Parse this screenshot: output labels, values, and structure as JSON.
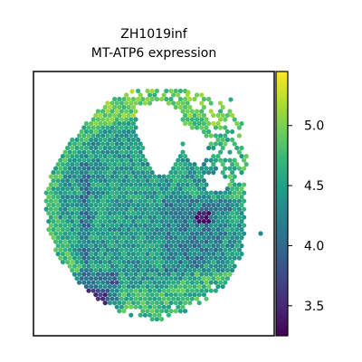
{
  "chart_data": {
    "type": "heatmap",
    "title": "ZH1019inf",
    "subtitle": "MT-ATP6 expression",
    "xlabel": "",
    "ylabel": "",
    "colorbar": {
      "colormap": "viridis",
      "range": [
        3.25,
        5.45
      ],
      "ticks": [
        3.5,
        4.0,
        4.5,
        5.0
      ],
      "tick_labels": [
        "3.5",
        "4.0",
        "4.5",
        "5.0"
      ]
    },
    "axes_ticks_visible": false,
    "grid": false,
    "spot_layout": "hexagonal",
    "value_summary": {
      "typical_range": [
        4.0,
        4.8
      ],
      "high_regions": [
        "upper-left rim",
        "top edge",
        "left edge"
      ],
      "low_regions": [
        "bottom-left edge",
        "small notch near center-right",
        "vertical streak in left half"
      ],
      "min_approx": 3.3,
      "max_approx": 5.4
    }
  },
  "colors": {
    "axis_frame": "#000000",
    "background": "#ffffff",
    "viridis_stops": [
      "#440154",
      "#482878",
      "#3e4989",
      "#31688e",
      "#26828e",
      "#1f9e89",
      "#35b779",
      "#6ece58",
      "#b5de2b",
      "#fde725"
    ]
  }
}
